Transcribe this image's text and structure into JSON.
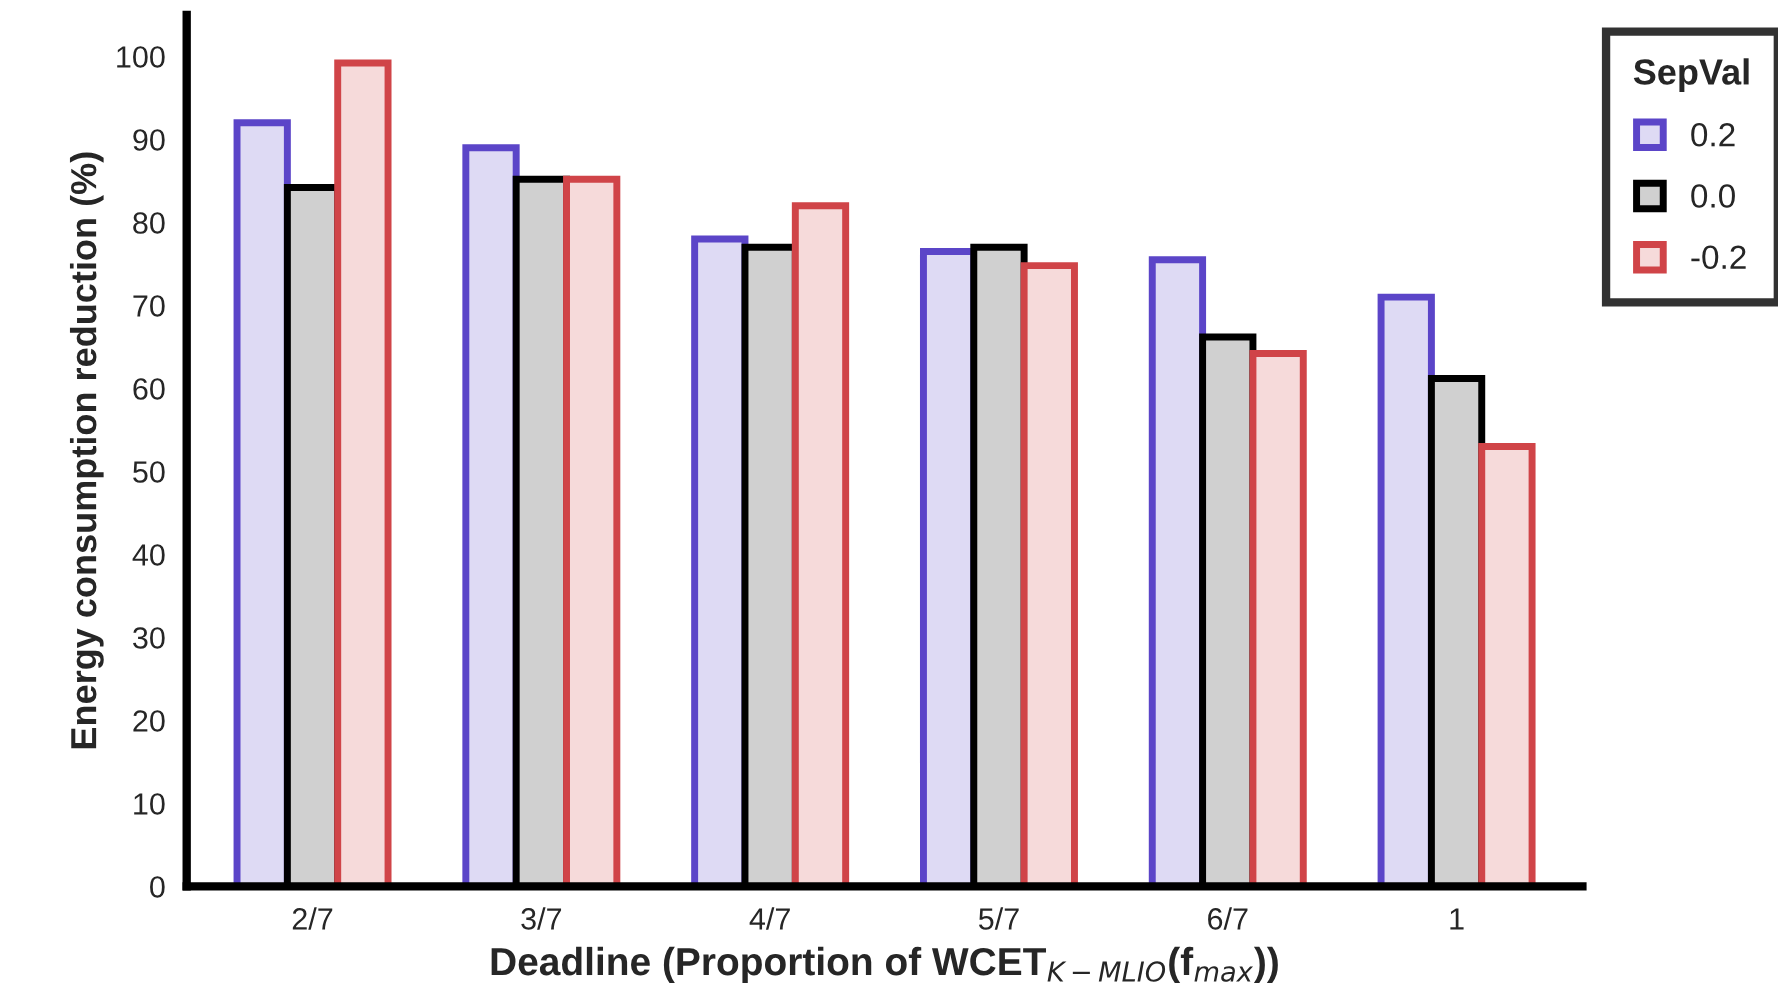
{
  "chart_data": {
    "type": "bar",
    "xlabel": "Deadline (Proportion of WCET$_{K−MLIO}$(f$_{max}$))",
    "ylabel": "Energy consumption reduction (%)",
    "legend_title": "SepVal",
    "categories": [
      "2/7",
      "3/7",
      "4/7",
      "5/7",
      "6/7",
      "1"
    ],
    "series": [
      {
        "name": "0.2",
        "color": "#5b45c8",
        "values": [
          92.0,
          89.0,
          78.0,
          76.5,
          75.5,
          71.0
        ]
      },
      {
        "name": "0.0",
        "color": "#000000",
        "values": [
          84.2,
          85.2,
          77.0,
          77.0,
          66.2,
          61.2
        ]
      },
      {
        "name": "-0.2",
        "color": "#d04448",
        "values": [
          99.2,
          85.2,
          82.0,
          74.8,
          64.2,
          53.0
        ]
      }
    ],
    "ylim": [
      0,
      105
    ],
    "yticks": [
      0,
      10,
      20,
      30,
      40,
      50,
      60,
      70,
      80,
      90,
      100
    ],
    "grid": false,
    "legend": "top right"
  }
}
